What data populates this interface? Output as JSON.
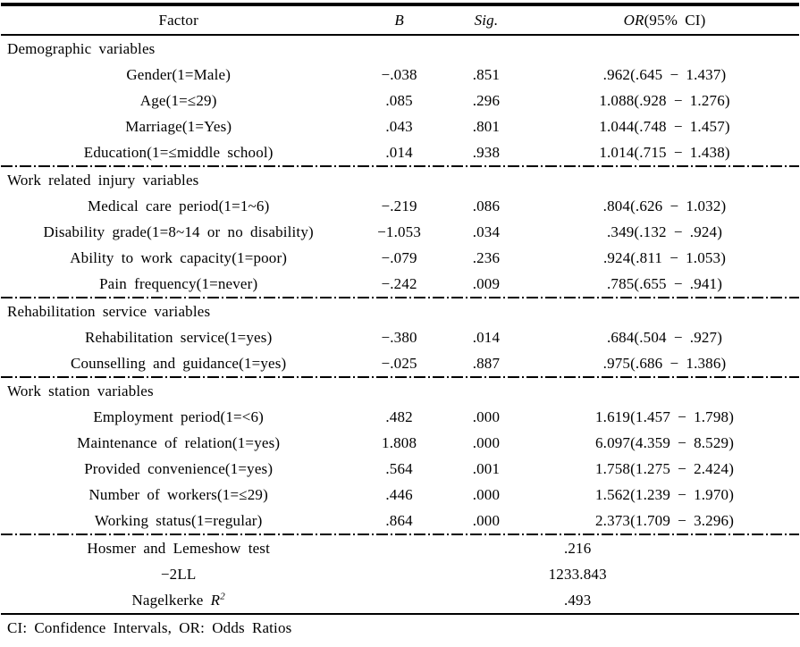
{
  "table": {
    "header": {
      "factor": "Factor",
      "b": "B",
      "sig": "Sig.",
      "or_abbrev": "OR",
      "or_ci": "(95% CI)"
    },
    "sections": [
      {
        "title": "Demographic variables",
        "rows": [
          {
            "factor": "Gender(1=Male)",
            "b": "−.038",
            "sig": ".851",
            "or": ".962(.645 − 1.437)"
          },
          {
            "factor": "Age(1=≤29)",
            "b": ".085",
            "sig": ".296",
            "or": "1.088(.928 − 1.276)"
          },
          {
            "factor": "Marriage(1=Yes)",
            "b": ".043",
            "sig": ".801",
            "or": "1.044(.748 − 1.457)"
          },
          {
            "factor": "Education(1=≤middle school)",
            "b": ".014",
            "sig": ".938",
            "or": "1.014(.715 − 1.438)"
          }
        ]
      },
      {
        "title": "Work related injury variables",
        "rows": [
          {
            "factor": "Medical care period(1=1~6)",
            "b": "−.219",
            "sig": ".086",
            "or": ".804(.626 − 1.032)"
          },
          {
            "factor": "Disability grade(1=8~14 or no disability)",
            "b": "−1.053",
            "sig": ".034",
            "or": ".349(.132 − .924)"
          },
          {
            "factor": "Ability to work capacity(1=poor)",
            "b": "−.079",
            "sig": ".236",
            "or": ".924(.811 − 1.053)"
          },
          {
            "factor": "Pain frequency(1=never)",
            "b": "−.242",
            "sig": ".009",
            "or": ".785(.655 − .941)"
          }
        ]
      },
      {
        "title": "Rehabilitation service variables",
        "rows": [
          {
            "factor": "Rehabilitation service(1=yes)",
            "b": "−.380",
            "sig": ".014",
            "or": ".684(.504 − .927)"
          },
          {
            "factor": "Counselling and guidance(1=yes)",
            "b": "−.025",
            "sig": ".887",
            "or": ".975(.686 − 1.386)"
          }
        ]
      },
      {
        "title": "Work station variables",
        "rows": [
          {
            "factor": "Employment period(1=<6)",
            "b": ".482",
            "sig": ".000",
            "or": "1.619(1.457 − 1.798)"
          },
          {
            "factor": "Maintenance of relation(1=yes)",
            "b": "1.808",
            "sig": ".000",
            "or": "6.097(4.359 − 8.529)"
          },
          {
            "factor": "Provided convenience(1=yes)",
            "b": ".564",
            "sig": ".001",
            "or": "1.758(1.275 − 2.424)"
          },
          {
            "factor": "Number of workers(1=≤29)",
            "b": ".446",
            "sig": ".000",
            "or": "1.562(1.239 − 1.970)"
          },
          {
            "factor": "Working status(1=regular)",
            "b": ".864",
            "sig": ".000",
            "or": "2.373(1.709 − 3.296)"
          }
        ]
      }
    ],
    "summary": [
      {
        "label": "Hosmer and Lemeshow test",
        "value": ".216"
      },
      {
        "label": "−2LL",
        "value": "1233.843"
      },
      {
        "label": "Nagelkerke",
        "math": "R",
        "sup": "2",
        "value": ".493"
      }
    ],
    "footnote": "CI: Confidence Intervals, OR: Odds Ratios"
  }
}
